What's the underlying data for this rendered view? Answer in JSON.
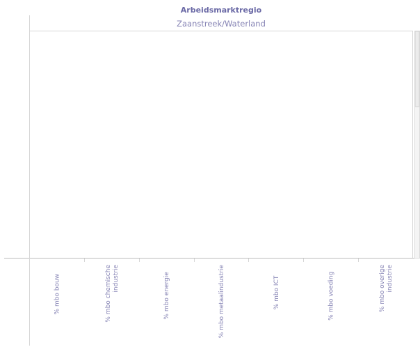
{
  "chart_data": {
    "type": "bar",
    "title": "Arbeidsmarktregio",
    "subtitle": "Zaanstreek/Waterland",
    "categories": [
      [
        "% mbo bouw"
      ],
      [
        "% mbo chemische",
        "industrie"
      ],
      [
        "% mbo energie"
      ],
      [
        "% mbo metaalindustrie"
      ],
      [
        "% mbo ICT"
      ],
      [
        "% mbo voeding"
      ],
      [
        "% mbo overige",
        "industrie"
      ]
    ],
    "values": [
      null,
      null,
      null,
      null,
      null,
      null,
      null
    ],
    "xlabel": "",
    "ylabel": "",
    "grid": false,
    "colors": {
      "title": "#6b6aa6",
      "label": "#8583b4"
    }
  }
}
